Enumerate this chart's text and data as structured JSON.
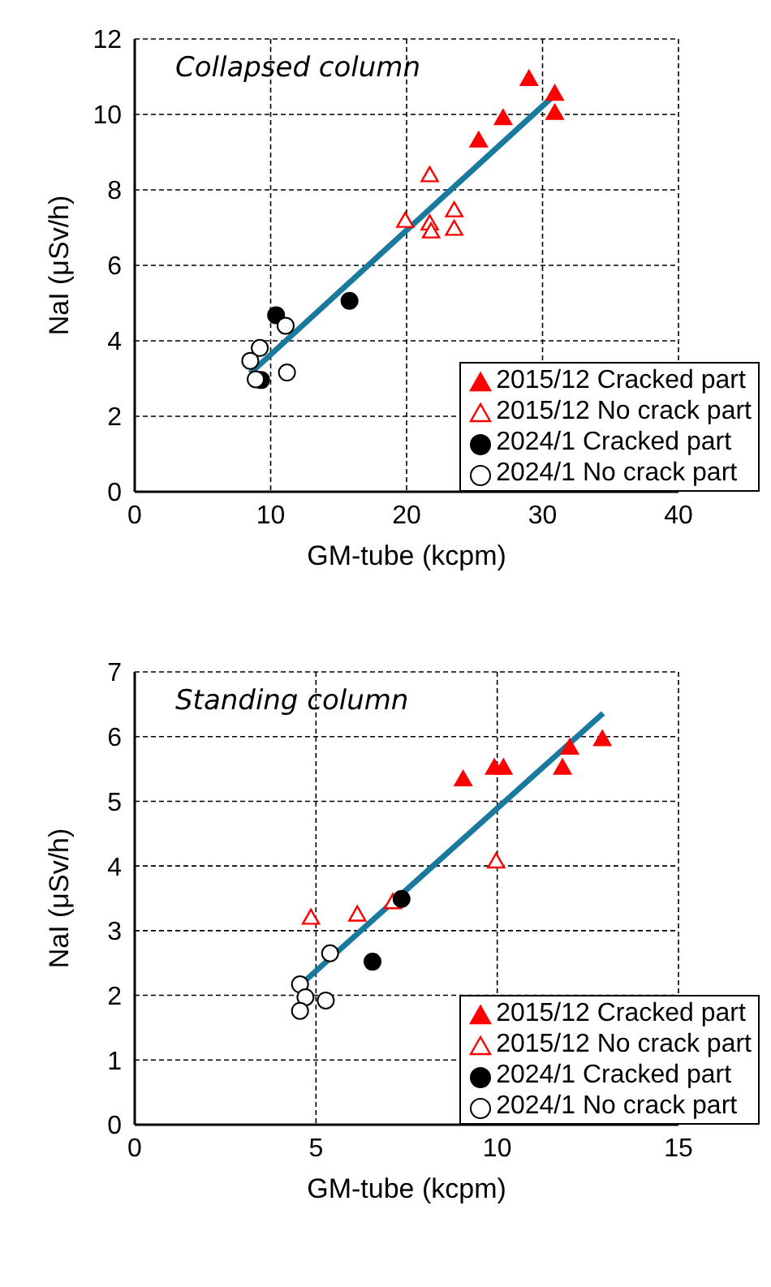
{
  "chart_data": [
    {
      "type": "scatter",
      "title": "Collapsed column",
      "xlabel": "GM-tube (kcpm)",
      "ylabel": "NaI (μSv/h)",
      "xlim": [
        0,
        40
      ],
      "xticks": [
        0,
        10,
        20,
        30,
        40
      ],
      "ylim": [
        0,
        12
      ],
      "yticks": [
        0,
        2,
        4,
        6,
        8,
        10,
        12
      ],
      "grid": true,
      "legend": "bottom right",
      "series": [
        {
          "name": "2015/12 Cracked part",
          "color": "#ff0000",
          "marker": "triangle",
          "x": [
            29.0,
            30.9,
            30.9,
            27.1,
            25.3
          ],
          "values": [
            10.94,
            10.55,
            10.04,
            9.9,
            9.31
          ]
        },
        {
          "name": "2015/12 No crack part",
          "color": "#ff0000",
          "marker": "triangle-open",
          "x": [
            21.7,
            19.9,
            21.7,
            21.8,
            23.5,
            23.5
          ],
          "values": [
            8.39,
            7.18,
            7.11,
            6.9,
            7.46,
            6.97
          ]
        },
        {
          "name": "2024/1 Cracked part",
          "color": "#000000",
          "marker": "circle",
          "x": [
            10.4,
            15.8,
            9.3
          ],
          "values": [
            4.68,
            5.06,
            2.96
          ]
        },
        {
          "name": "2024/1 No crack part",
          "color": "#000000",
          "marker": "circle-open",
          "x": [
            11.1,
            9.2,
            8.5,
            8.9,
            11.2
          ],
          "values": [
            4.4,
            3.81,
            3.47,
            2.98,
            3.16
          ]
        },
        {
          "type": "line",
          "color": "#1a7a9e",
          "x": [
            8.5,
            30.9
          ],
          "values": [
            3.14,
            10.52
          ]
        }
      ]
    },
    {
      "type": "scatter",
      "title": "Standing column",
      "xlabel": "GM-tube (kcpm)",
      "ylabel": "NaI (μSv/h)",
      "xlim": [
        0,
        15
      ],
      "xticks": [
        0,
        5,
        10,
        15
      ],
      "ylim": [
        0,
        7
      ],
      "yticks": [
        0,
        1,
        2,
        3,
        4,
        5,
        6,
        7
      ],
      "grid": true,
      "legend": "bottom right",
      "series": [
        {
          "name": "2015/12 Cracked part",
          "color": "#ff0000",
          "marker": "triangle",
          "x": [
            9.06,
            9.92,
            10.17,
            12.0,
            11.8,
            12.9
          ],
          "values": [
            5.34,
            5.52,
            5.52,
            5.83,
            5.52,
            5.96
          ]
        },
        {
          "name": "2015/12 No crack part",
          "color": "#ff0000",
          "marker": "triangle-open",
          "x": [
            4.86,
            6.14,
            7.12,
            9.97
          ],
          "values": [
            3.2,
            3.25,
            3.44,
            4.07
          ]
        },
        {
          "name": "2024/1 Cracked part",
          "color": "#000000",
          "marker": "circle",
          "x": [
            7.36,
            6.56
          ],
          "values": [
            3.49,
            2.52
          ]
        },
        {
          "name": "2024/1 No crack part",
          "color": "#000000",
          "marker": "circle-open",
          "x": [
            5.39,
            4.56,
            4.71,
            5.27,
            4.56
          ],
          "values": [
            2.65,
            2.17,
            1.97,
            1.92,
            1.76
          ]
        },
        {
          "type": "line",
          "color": "#1a7a9e",
          "x": [
            4.59,
            12.92
          ],
          "values": [
            2.17,
            6.36
          ]
        }
      ]
    }
  ]
}
